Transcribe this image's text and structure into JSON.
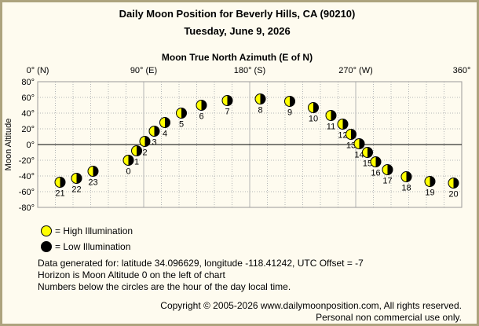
{
  "header": {
    "title": "Daily Moon Position for Beverly Hills, CA (90210)",
    "date": "Tuesday, June 9, 2026"
  },
  "chart_data": {
    "type": "scatter",
    "title": "Moon True North Azimuth (E of N)",
    "xlabel": "Moon True North Azimuth (E of N)",
    "ylabel": "Moon Altitude",
    "xlim": [
      0,
      360
    ],
    "ylim": [
      -80,
      80
    ],
    "x_ticks": [
      {
        "value": 0,
        "label": "0° (N)"
      },
      {
        "value": 90,
        "label": "90° (E)"
      },
      {
        "value": 180,
        "label": "180° (S)"
      },
      {
        "value": 270,
        "label": "270° (W)"
      },
      {
        "value": 360,
        "label": "360°"
      }
    ],
    "y_ticks": [
      {
        "value": 80,
        "label": "80°"
      },
      {
        "value": 60,
        "label": "60°"
      },
      {
        "value": 40,
        "label": "40°"
      },
      {
        "value": 20,
        "label": "20°"
      },
      {
        "value": 0,
        "label": "0°"
      },
      {
        "value": -20,
        "label": "-20°"
      },
      {
        "value": -40,
        "label": "-40°"
      },
      {
        "value": -60,
        "label": "-60°"
      },
      {
        "value": -80,
        "label": "-80°"
      }
    ],
    "grid": true,
    "horizon_altitude": 0,
    "points": [
      {
        "hour": "21",
        "azimuth": 19,
        "altitude": -48
      },
      {
        "hour": "22",
        "azimuth": 33,
        "altitude": -43
      },
      {
        "hour": "23",
        "azimuth": 47,
        "altitude": -34
      },
      {
        "hour": "0",
        "azimuth": 77,
        "altitude": -20
      },
      {
        "hour": "1",
        "azimuth": 84,
        "altitude": -8
      },
      {
        "hour": "2",
        "azimuth": 91,
        "altitude": 4
      },
      {
        "hour": "3",
        "azimuth": 99,
        "altitude": 17
      },
      {
        "hour": "4",
        "azimuth": 108,
        "altitude": 28
      },
      {
        "hour": "5",
        "azimuth": 122,
        "altitude": 40
      },
      {
        "hour": "6",
        "azimuth": 139,
        "altitude": 50
      },
      {
        "hour": "7",
        "azimuth": 161,
        "altitude": 56
      },
      {
        "hour": "8",
        "azimuth": 189,
        "altitude": 58
      },
      {
        "hour": "9",
        "azimuth": 214,
        "altitude": 55
      },
      {
        "hour": "10",
        "azimuth": 234,
        "altitude": 47
      },
      {
        "hour": "11",
        "azimuth": 249,
        "altitude": 37
      },
      {
        "hour": "12",
        "azimuth": 259,
        "altitude": 26
      },
      {
        "hour": "13",
        "azimuth": 266,
        "altitude": 13
      },
      {
        "hour": "14",
        "azimuth": 273,
        "altitude": 1
      },
      {
        "hour": "15",
        "azimuth": 280,
        "altitude": -10
      },
      {
        "hour": "16",
        "azimuth": 287,
        "altitude": -22
      },
      {
        "hour": "17",
        "azimuth": 297,
        "altitude": -32
      },
      {
        "hour": "18",
        "azimuth": 313,
        "altitude": -41
      },
      {
        "hour": "19",
        "azimuth": 333,
        "altitude": -47
      },
      {
        "hour": "20",
        "azimuth": 353,
        "altitude": -49
      }
    ]
  },
  "legend": {
    "high_label": "= High Illumination",
    "low_label": "= Low Illumination"
  },
  "colors": {
    "high_illumination": "#ffff00",
    "low_illumination": "#000000",
    "background": "#fefbef",
    "border": "#ada37e",
    "grid": "#b4b4b4"
  },
  "info": {
    "line1": "Data generated for: latitude 34.096629, longitude -118.41242, UTC Offset = -7",
    "line2": "Horizon is Moon Altitude 0 on the left of chart",
    "line3": "Numbers below the circles are the hour of the day local time."
  },
  "footer": {
    "copyright": "Copyright © 2005-2026 www.dailymoonposition.com, All rights reserved.",
    "personal": "Personal non commercial use only."
  }
}
